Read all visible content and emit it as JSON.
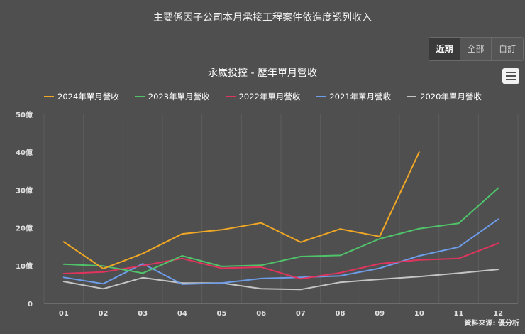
{
  "notice": "主要係因子公司本月承接工程案件依進度認列收入",
  "range_buttons": [
    {
      "label": "近期",
      "active": true
    },
    {
      "label": "全部",
      "active": false
    },
    {
      "label": "自訂",
      "active": false
    }
  ],
  "menu_icon": "hamburger-menu-icon",
  "credit": "資料來源: 優分析",
  "chart_data": {
    "type": "line",
    "title": "永崴投控 - 歷年單月營收",
    "xlabel": "",
    "ylabel": "",
    "categories": [
      "01",
      "02",
      "03",
      "04",
      "05",
      "06",
      "07",
      "08",
      "09",
      "10",
      "11",
      "12"
    ],
    "y_ticks": [
      "0",
      "10億",
      "20億",
      "30億",
      "40億",
      "50億"
    ],
    "ylim": [
      0,
      50
    ],
    "grid": "vertical",
    "legend_position": "top",
    "series": [
      {
        "name": "2024年單月營收",
        "color": "#f0a725",
        "values": [
          16.3,
          9.2,
          13.2,
          18.4,
          19.5,
          21.3,
          16.2,
          19.7,
          17.7,
          40.0,
          null,
          null
        ]
      },
      {
        "name": "2023年單月營收",
        "color": "#4fc36a",
        "values": [
          10.4,
          9.9,
          8.0,
          12.6,
          9.8,
          10.1,
          12.4,
          12.7,
          17.1,
          19.8,
          21.2,
          30.5
        ]
      },
      {
        "name": "2022年單月營收",
        "color": "#e0345f",
        "values": [
          7.9,
          8.3,
          10.0,
          11.9,
          9.3,
          9.6,
          6.5,
          8.1,
          10.5,
          11.5,
          11.9,
          15.9
        ]
      },
      {
        "name": "2021年單月營收",
        "color": "#6d9ce8",
        "values": [
          6.9,
          5.2,
          10.5,
          5.1,
          5.4,
          6.6,
          6.9,
          7.3,
          9.3,
          12.6,
          14.9,
          22.3
        ]
      },
      {
        "name": "2020年單月營收",
        "color": "#c4c4c4",
        "values": [
          5.8,
          3.9,
          6.8,
          5.4,
          5.4,
          3.9,
          3.7,
          5.6,
          6.4,
          7.1,
          8.0,
          9.0
        ]
      }
    ]
  }
}
